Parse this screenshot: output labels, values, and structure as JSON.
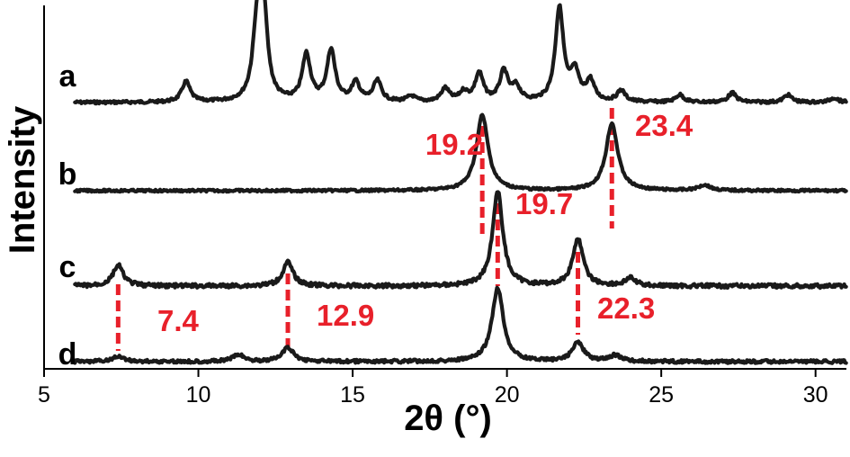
{
  "chart_data": {
    "type": "line",
    "xlabel": "2θ (°)",
    "ylabel": "Intensity",
    "xlim": [
      5,
      31
    ],
    "xticks": [
      5,
      10,
      15,
      20,
      25,
      30
    ],
    "yticks": [],
    "grid": false,
    "legend": "none",
    "colors": {
      "trace": "#1a1a1a",
      "annotation": "#e8202a",
      "axis": "#000000"
    },
    "series": [
      {
        "name": "a",
        "peaks": [
          [
            9.6,
            0.22
          ],
          [
            11.9,
            0.72
          ],
          [
            12.1,
            1.0
          ],
          [
            13.5,
            0.5
          ],
          [
            14.3,
            0.55
          ],
          [
            15.1,
            0.2
          ],
          [
            15.8,
            0.22
          ],
          [
            16.9,
            0.06
          ],
          [
            18.0,
            0.14
          ],
          [
            18.6,
            0.1
          ],
          [
            19.1,
            0.3
          ],
          [
            19.9,
            0.32
          ],
          [
            20.3,
            0.15
          ],
          [
            21.7,
            1.0
          ],
          [
            22.2,
            0.3
          ],
          [
            22.7,
            0.22
          ],
          [
            23.7,
            0.12
          ],
          [
            25.6,
            0.08
          ],
          [
            27.3,
            0.1
          ],
          [
            29.1,
            0.08
          ],
          [
            30.6,
            0.05
          ]
        ]
      },
      {
        "name": "b",
        "peaks": [
          [
            19.2,
            0.95
          ],
          [
            23.4,
            0.85
          ],
          [
            26.4,
            0.07
          ]
        ]
      },
      {
        "name": "c",
        "peaks": [
          [
            7.4,
            0.22
          ],
          [
            12.9,
            0.25
          ],
          [
            19.7,
            1.0
          ],
          [
            22.3,
            0.5
          ],
          [
            24.0,
            0.08
          ]
        ]
      },
      {
        "name": "d",
        "peaks": [
          [
            7.4,
            0.06
          ],
          [
            11.3,
            0.08
          ],
          [
            12.9,
            0.16
          ],
          [
            19.7,
            0.85
          ],
          [
            22.3,
            0.22
          ],
          [
            23.5,
            0.07
          ]
        ]
      }
    ],
    "annotations": [
      {
        "text": "19.2",
        "x": 19.2,
        "series": "b"
      },
      {
        "text": "23.4",
        "x": 23.4,
        "series": "b"
      },
      {
        "text": "19.7",
        "x": 19.7,
        "series": "c"
      },
      {
        "text": "7.4",
        "x": 7.4,
        "series": "d"
      },
      {
        "text": "12.9",
        "x": 12.9,
        "series": "d"
      },
      {
        "text": "22.3",
        "x": 22.3,
        "series": "d"
      }
    ]
  }
}
